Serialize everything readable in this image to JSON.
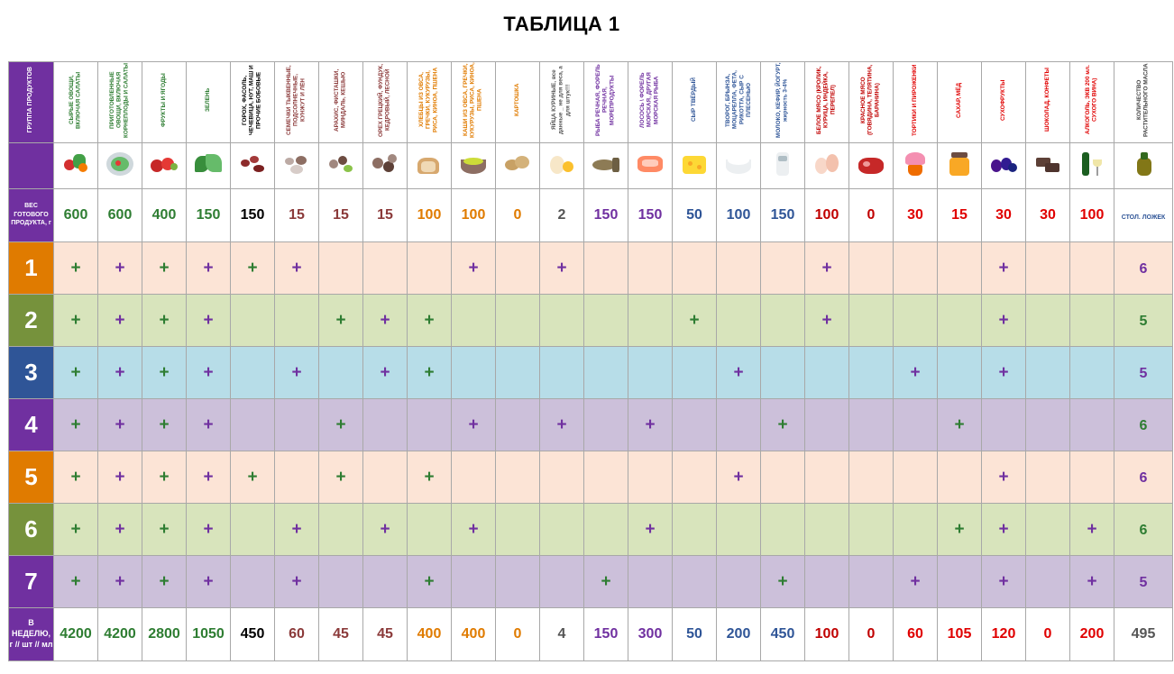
{
  "title": "ТАБЛИЦА 1",
  "header_label": "ГРУППА ПРОДУКТОВ",
  "weight_label": "ВЕС ГОТОВОГО ПРОДУКТА, г",
  "total_label": "В НЕДЕЛЮ, г // шт // мл",
  "columns": [
    {
      "name": "СЫРЫЕ ОВОЩИ, ВКЛЮЧАЯ САЛАТЫ",
      "color": "#2e7d32",
      "weight": "600",
      "total": "4200",
      "icon": "raw-vegetables-icon"
    },
    {
      "name": "ПРИГОТОВЛЕННЫЕ ОВОЩИ, ВКЛЮЧАЯ КОРНЕПЛОДЫ И САЛАТЫ",
      "color": "#2e7d32",
      "weight": "600",
      "total": "4200",
      "icon": "cooked-vegetables-icon"
    },
    {
      "name": "ФРУКТЫ И ЯГОДЫ",
      "color": "#2e7d32",
      "weight": "400",
      "total": "2800",
      "icon": "fruits-icon"
    },
    {
      "name": "ЗЕЛЕНЬ",
      "color": "#2e7d32",
      "weight": "150",
      "total": "1050",
      "icon": "greens-icon"
    },
    {
      "name": "ГОРОХ, ФАСОЛЬ, ЧЕЧЕВИЦА, НУТ, МАШ И ПРОЧИЕ БОБОВЫЕ",
      "color": "#000000",
      "weight": "150",
      "total": "450",
      "icon": "beans-icon"
    },
    {
      "name": "СЕМЕЧКИ ТЫКВЕННЫЕ, ПОДСОЛНЕЧНЫЕ, КУНЖУТ И ЛЁН",
      "color": "#8b3a3a",
      "weight": "15",
      "total": "60",
      "icon": "seeds-icon"
    },
    {
      "name": "АРАХИС, ФИСТАШКИ, МИНДАЛЬ, КЕШЬЮ",
      "color": "#8b3a3a",
      "weight": "15",
      "total": "45",
      "icon": "nuts-icon"
    },
    {
      "name": "ОРЕХ ГРЕЦКИЙ, ФУНДУК, КЕДРОВЫЙ, ЛЕСНОЙ",
      "color": "#8b3a3a",
      "weight": "15",
      "total": "45",
      "icon": "walnuts-icon"
    },
    {
      "name": "ХЛЕБЦЫ ИЗ ОВСА, ГРЕЧКИ, КУКУРУЗЫ, РИСА, КИНОА, ПШЕНА",
      "color": "#e07b00",
      "weight": "100",
      "total": "400",
      "icon": "bread-icon"
    },
    {
      "name": "КАШИ ИЗ ОВСА, ГРЕЧКИ, КУКУРУЗЫ, РИСА, КИНОА, ПШЕНА",
      "color": "#e07b00",
      "weight": "100",
      "total": "400",
      "icon": "porridge-icon"
    },
    {
      "name": "КАРТОШКА",
      "color": "#e07b00",
      "weight": "0",
      "total": "0",
      "icon": "potato-icon"
    },
    {
      "name": "ЯЙЦА КУРИНЫЕ, все данные _ не для веса, а для штук!!!",
      "color": "#555555",
      "weight": "2",
      "total": "4",
      "icon": "eggs-icon"
    },
    {
      "name": "РЫБА РЕЧНАЯ, ФОРЕЛЬ РЕЧНАЯ, МОРЕПРОДУКТЫ",
      "color": "#7030a0",
      "weight": "150",
      "total": "150",
      "icon": "fish-icon"
    },
    {
      "name": "ЛОСОСЬ \\ ФОРЕЛЬ МОРСКАЯ, ДРУГАЯ МОРСКАЯ РЫБА",
      "color": "#7030a0",
      "weight": "150",
      "total": "300",
      "icon": "salmon-icon"
    },
    {
      "name": "СЫР ТВЁРДЫЙ",
      "color": "#2f5597",
      "weight": "50",
      "total": "50",
      "icon": "cheese-icon"
    },
    {
      "name": "ТВОРОГ, БРЫНЗА, МОЦАРЕЛЛА, ФЕТА, РИКОТТА, СЫР С ПЛЕСЕНЬЮ",
      "color": "#2f5597",
      "weight": "100",
      "total": "200",
      "icon": "cottage-cheese-icon"
    },
    {
      "name": "МОЛОКО, КЕФИР, ЙОГУРТ, жирность 3-4%",
      "color": "#2f5597",
      "weight": "150",
      "total": "450",
      "icon": "milk-icon"
    },
    {
      "name": "БЕЛОЕ МЯСО (КРОЛИК, КУРИЦА, ИНДЕЙКА, ПЕРЕПЕЛ)",
      "color": "#c00000",
      "weight": "100",
      "total": "100",
      "icon": "white-meat-icon"
    },
    {
      "name": "КРАСНОЕ МЯСО (ГОВЯДИНА, ТЕЛЯТИНА, БАРАНИНА)",
      "color": "#c00000",
      "weight": "0",
      "total": "0",
      "icon": "red-meat-icon"
    },
    {
      "name": "ТОРТИКИ И ПИРОЖЕНКИ",
      "color": "#e00000",
      "weight": "30",
      "total": "60",
      "icon": "cupcake-icon"
    },
    {
      "name": "САХАР, МЁД",
      "color": "#e00000",
      "weight": "15",
      "total": "105",
      "icon": "honey-icon"
    },
    {
      "name": "СУХОФРУКТЫ",
      "color": "#e00000",
      "weight": "30",
      "total": "120",
      "icon": "dried-fruits-icon"
    },
    {
      "name": "ШОКОЛАД, КОНФЕТЫ",
      "color": "#e00000",
      "weight": "30",
      "total": "0",
      "icon": "chocolate-icon"
    },
    {
      "name": "АЛКОГОЛЬ, ЭКВ 200 мл. СУХОГО ВИНА)",
      "color": "#e00000",
      "weight": "100",
      "total": "200",
      "icon": "wine-icon"
    }
  ],
  "oil": {
    "name": "КОЛИЧЕСТВО РАСТИТЕЛЬНОГО МАСЛА",
    "weight": "СТОЛ. ЛОЖЕК",
    "total": "495",
    "icon": "oil-bottle-icon"
  },
  "days": [
    {
      "num": "1",
      "color": "#e07b00",
      "bg": "#fce4d6",
      "marks": "XXXXXX...X.X.....X...X...",
      "oil": "6",
      "oil_color": "#7030a0"
    },
    {
      "num": "2",
      "color": "#76923c",
      "bg": "#d8e4bc",
      "marks": "XXXX..XXX.....X..X...X...",
      "oil": "5",
      "oil_color": "#2e7d32"
    },
    {
      "num": "3",
      "color": "#2f5597",
      "bg": "#b7dde8",
      "marks": "XXXX.X.XX......X...X.X...",
      "oil": "5",
      "oil_color": "#7030a0"
    },
    {
      "num": "4",
      "color": "#7030a0",
      "bg": "#ccc0da",
      "marks": "XXXX..X..X.X.X..X...X....",
      "oil": "6",
      "oil_color": "#2e7d32"
    },
    {
      "num": "5",
      "color": "#e07b00",
      "bg": "#fce4d6",
      "marks": "XXXXX.X.X......X.....X...",
      "oil": "6",
      "oil_color": "#7030a0"
    },
    {
      "num": "6",
      "color": "#76923c",
      "bg": "#d8e4bc",
      "marks": "XXXX.X.X.X...X......XX.X.",
      "oil": "6",
      "oil_color": "#2e7d32"
    },
    {
      "num": "7",
      "color": "#7030a0",
      "bg": "#ccc0da",
      "marks": "XXXX.X..X...X...X..X.X.X.",
      "oil": "5",
      "oil_color": "#7030a0"
    }
  ],
  "plus_sign": "+",
  "plus_colors": {
    "green": "#2e7d32",
    "purple": "#7030a0"
  }
}
